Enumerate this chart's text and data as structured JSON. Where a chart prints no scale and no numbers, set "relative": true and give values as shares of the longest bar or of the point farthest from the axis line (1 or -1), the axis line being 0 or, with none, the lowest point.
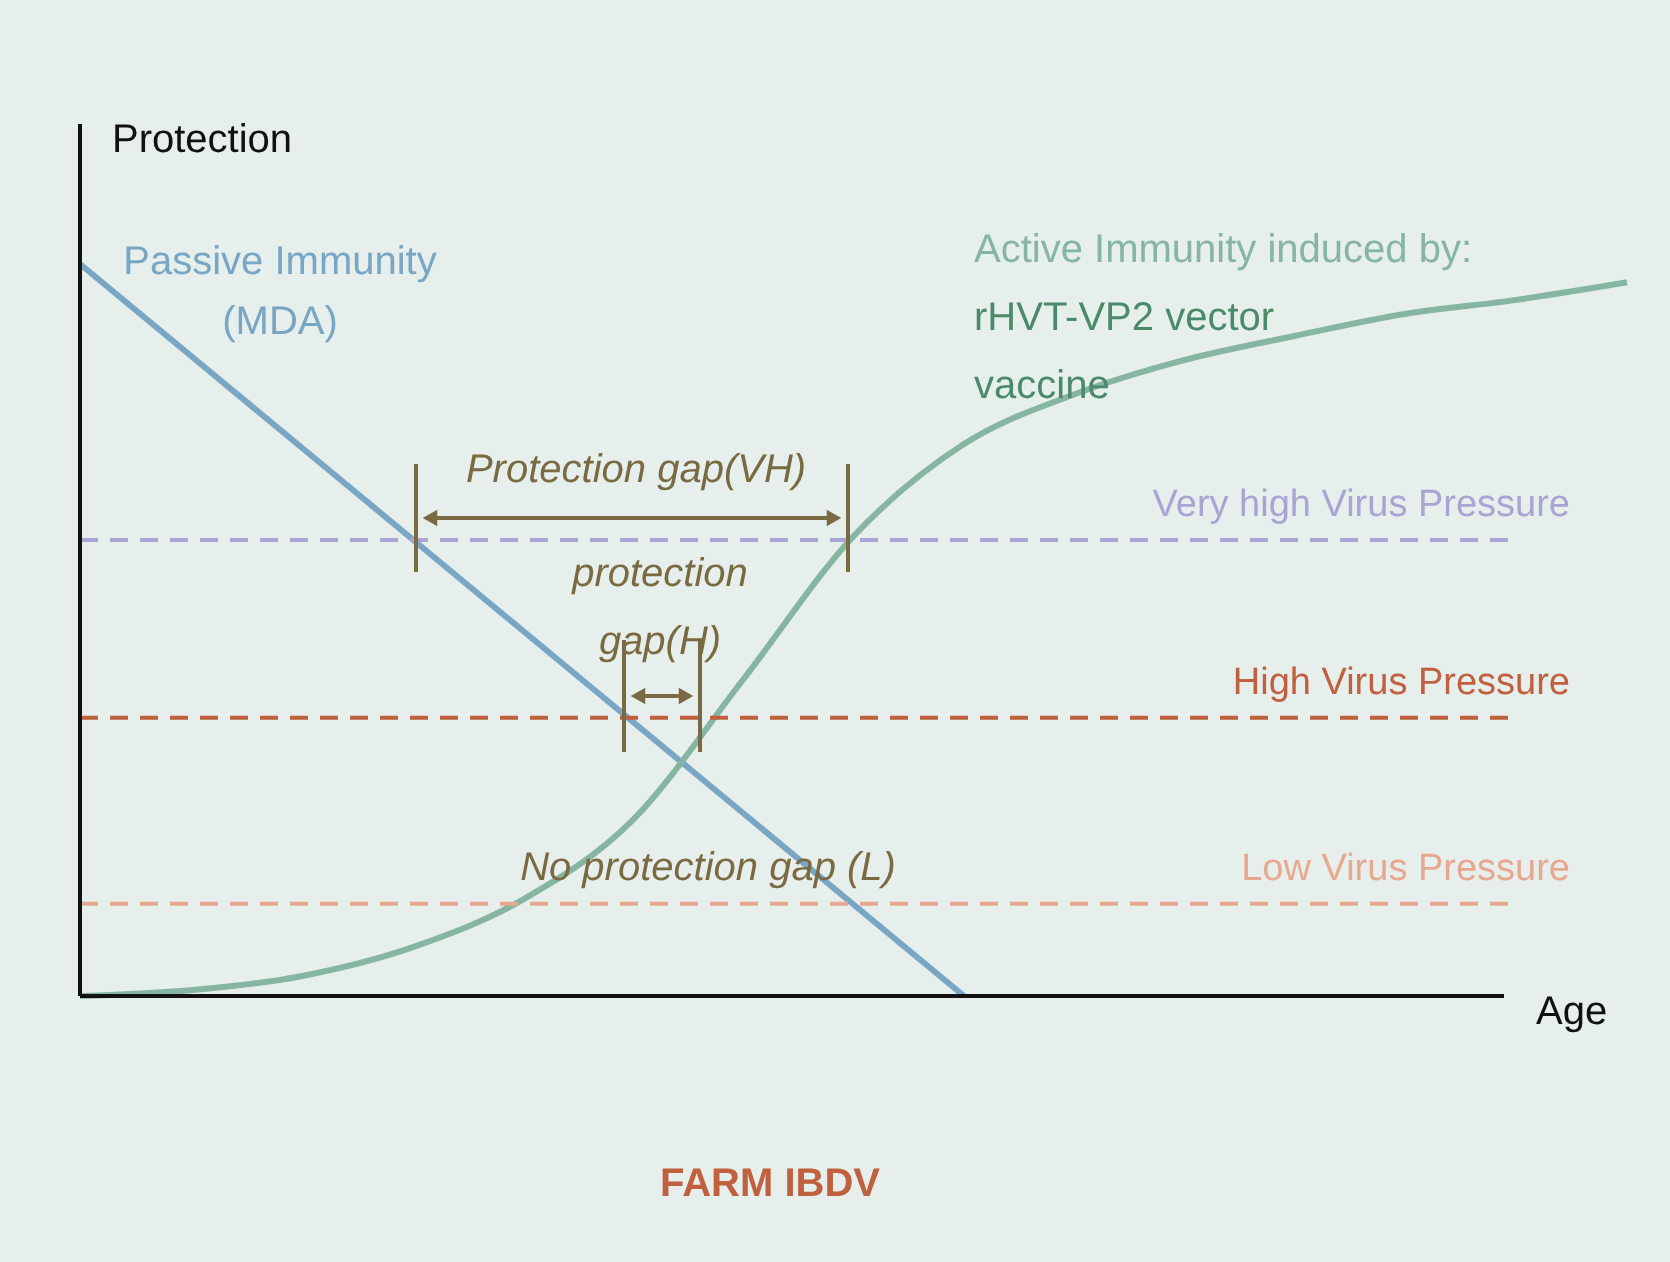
{
  "chart_data": {
    "type": "line",
    "relative": true,
    "xlabel": "Age",
    "ylabel": "Protection",
    "categories": [
      null,
      null,
      null,
      null,
      null,
      null,
      null,
      null,
      null,
      null,
      null,
      null,
      null,
      null,
      null
    ],
    "series": [
      {
        "name": "Passive Immunity (MDA)",
        "color": "#78a6c4",
        "values": [
          1,
          0.875,
          0.75,
          0.625,
          0.5,
          0.375,
          0.25,
          0.125,
          0,
          null,
          null,
          null,
          null,
          null,
          null
        ]
      },
      {
        "name": "Active Immunity induced by:",
        "color": "#86b5a1",
        "values": [
          0,
          0.008,
          0.027,
          0.066,
          0.131,
          0.24,
          0.432,
          0.628,
          0.754,
          0.822,
          0.869,
          0.902,
          0.932,
          0.951,
          0.975
        ]
      }
    ],
    "ref_lines": [
      {
        "axis": "y",
        "value": 0.623,
        "label": "Very high Virus Pressure",
        "color": "#a9a4d4",
        "line_style": "dashed"
      },
      {
        "axis": "y",
        "value": 0.38,
        "label": "High Virus Pressure",
        "color": "#c0603e",
        "line_style": "dashed"
      },
      {
        "axis": "y",
        "value": 0.126,
        "label": "Low Virus Pressure",
        "color": "#e8a890",
        "line_style": "dashed"
      }
    ],
    "annotations": [
      "rHVT-VP2 vector vaccine",
      "Protection gap(VH)",
      "protection gap(H)",
      "No protection gap (L)",
      "FARM IBDV"
    ],
    "marker": "none",
    "line_style": "solid"
  }
}
